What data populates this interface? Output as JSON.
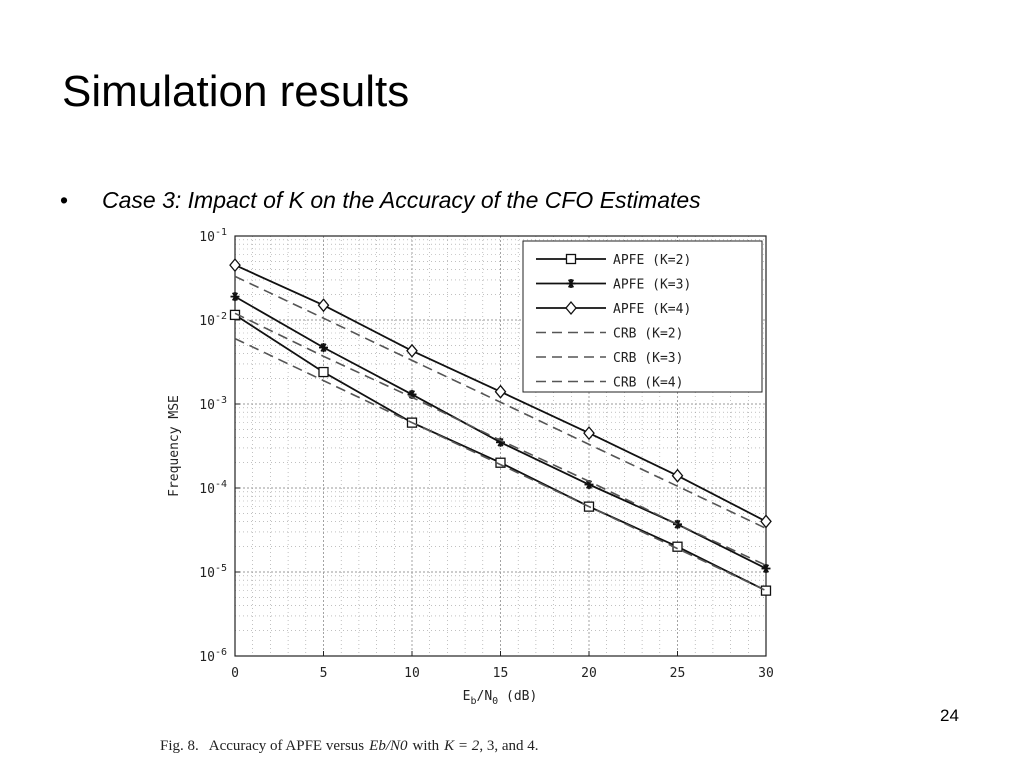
{
  "slide": {
    "title": "Simulation results",
    "bullet_marker": "•",
    "bullet_text": "Case 3: Impact of  K on the Accuracy of the CFO Estimates",
    "page_number": "24"
  },
  "caption": {
    "prefix": "Fig. 8.",
    "text_a": "Accuracy of APFE versus",
    "math_x": "Eb/N0",
    "text_b": "with",
    "math_k": "K = 2",
    "text_c": ", 3, and 4."
  },
  "chart_data": {
    "type": "line",
    "xlabel": "Eb/N0 (dB)",
    "xlabel_main": "E",
    "xlabel_sub1": "b",
    "xlabel_mid": "/N",
    "xlabel_sub2": "0",
    "xlabel_tail": " (dB)",
    "ylabel": "Frequency MSE",
    "xlim": [
      0,
      30
    ],
    "ylim": [
      1e-06,
      0.1
    ],
    "yscale": "log",
    "grid": true,
    "legend_position": "top-right",
    "x_ticks": [
      "0",
      "5",
      "10",
      "15",
      "20",
      "25",
      "30"
    ],
    "y_tick_exponents": [
      "-1",
      "-2",
      "-3",
      "-4",
      "-5",
      "-6"
    ],
    "y_tick_base": "10",
    "x": [
      0,
      5,
      10,
      15,
      20,
      25,
      30
    ],
    "series": [
      {
        "name": "APFE (K=2)",
        "style": "solid",
        "marker": "square",
        "values": [
          0.0115,
          0.0024,
          0.0006,
          0.0002,
          6e-05,
          2e-05,
          6e-06
        ]
      },
      {
        "name": "APFE (K=3)",
        "style": "solid",
        "marker": "star",
        "values": [
          0.019,
          0.0047,
          0.0013,
          0.00035,
          0.00011,
          3.7e-05,
          1.1e-05
        ]
      },
      {
        "name": "APFE (K=4)",
        "style": "solid",
        "marker": "diamond",
        "values": [
          0.045,
          0.015,
          0.0043,
          0.0014,
          0.00045,
          0.00014,
          4e-05
        ]
      },
      {
        "name": "CRB (K=2)",
        "style": "dashed",
        "marker": "none",
        "values": [
          0.006,
          0.0019,
          0.0006,
          0.00019,
          6e-05,
          1.9e-05,
          6e-06
        ]
      },
      {
        "name": "CRB (K=3)",
        "style": "dashed",
        "marker": "none",
        "values": [
          0.012,
          0.0037,
          0.0012,
          0.00037,
          0.00012,
          3.7e-05,
          1.2e-05
        ]
      },
      {
        "name": "CRB (K=4)",
        "style": "dashed",
        "marker": "none",
        "values": [
          0.033,
          0.0105,
          0.0033,
          0.00105,
          0.00033,
          0.000105,
          3.3e-05
        ]
      }
    ],
    "colors": {
      "line": "#111111",
      "grid": "#9a9a9a",
      "dashed": "#555555"
    }
  }
}
